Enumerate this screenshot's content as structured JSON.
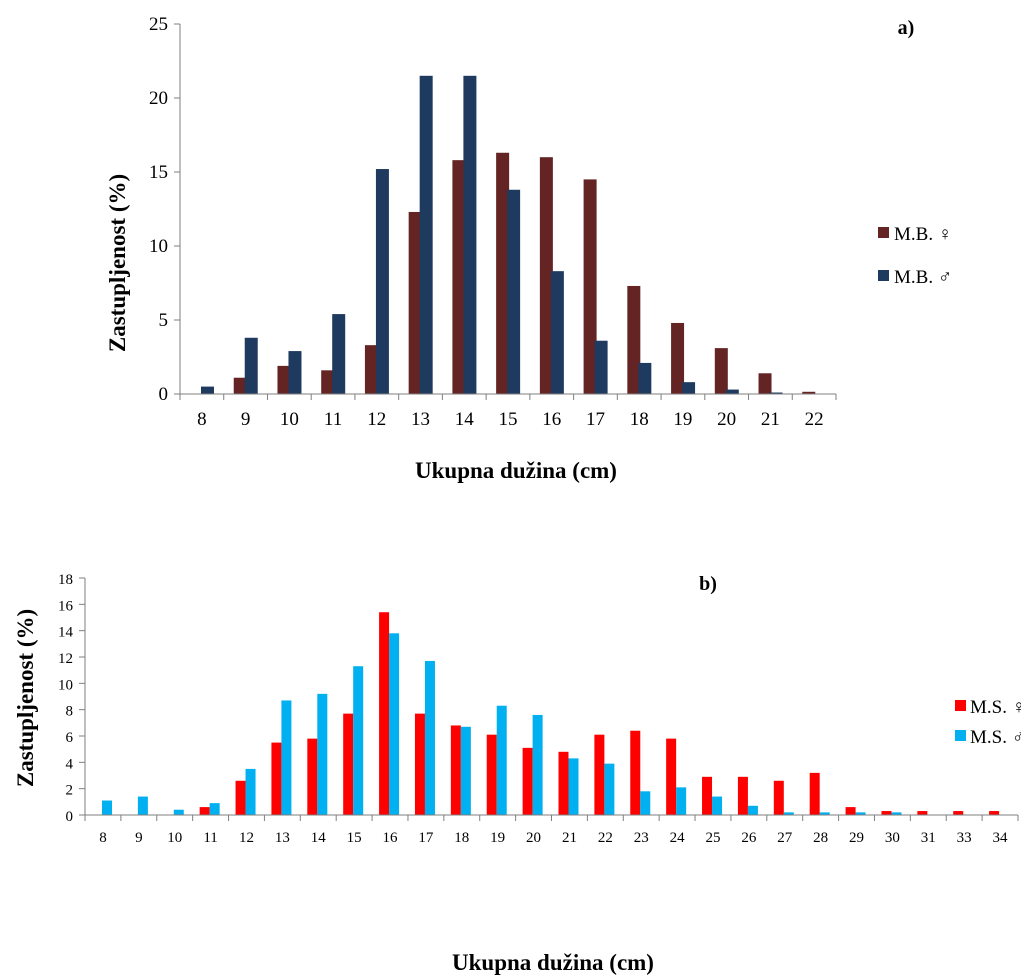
{
  "chart_data": [
    {
      "type": "bar",
      "panel_label": "a)",
      "xlabel": "Ukupna dužina (cm)",
      "ylabel": "Zastupljenost (%)",
      "ylim": [
        0,
        25
      ],
      "yticks": [
        "0",
        "5",
        "10",
        "15",
        "20",
        "25"
      ],
      "categories": [
        "8",
        "9",
        "10",
        "11",
        "12",
        "13",
        "14",
        "15",
        "16",
        "17",
        "18",
        "19",
        "20",
        "21",
        "22"
      ],
      "series": [
        {
          "name": "M.B. ♀",
          "color": "#632423",
          "values": [
            0,
            1.1,
            1.9,
            1.6,
            3.3,
            12.3,
            15.8,
            16.3,
            16.0,
            14.5,
            7.3,
            4.8,
            3.1,
            1.4,
            0.15
          ]
        },
        {
          "name": "M.B. ♂",
          "color": "#1f3a5f",
          "values": [
            0.5,
            3.8,
            2.9,
            5.4,
            15.2,
            21.5,
            21.5,
            13.8,
            8.3,
            3.6,
            2.1,
            0.8,
            0.3,
            0.1,
            0
          ]
        }
      ],
      "legend": "right",
      "grid": false
    },
    {
      "type": "bar",
      "panel_label": "b)",
      "xlabel": "Ukupna dužina (cm)",
      "ylabel": "Zastupljenost (%)",
      "ylim": [
        0,
        18
      ],
      "yticks": [
        "0",
        "2",
        "4",
        "6",
        "8",
        "10",
        "12",
        "14",
        "16",
        "18"
      ],
      "categories": [
        "8",
        "9",
        "10",
        "11",
        "12",
        "13",
        "14",
        "15",
        "16",
        "17",
        "18",
        "19",
        "20",
        "21",
        "22",
        "23",
        "24",
        "25",
        "26",
        "27",
        "28",
        "29",
        "30",
        "31",
        "33",
        "34"
      ],
      "series": [
        {
          "name": "M.S. ♀",
          "color": "#ff0000",
          "values": [
            0,
            0,
            0,
            0.6,
            2.6,
            5.5,
            5.8,
            7.7,
            15.4,
            7.7,
            6.8,
            6.1,
            5.1,
            4.8,
            6.1,
            6.4,
            5.8,
            2.9,
            2.9,
            2.6,
            3.2,
            0.6,
            0.3,
            0.3,
            0.3,
            0.3
          ]
        },
        {
          "name": "M.S. ♂",
          "color": "#00b0f0",
          "values": [
            1.1,
            1.4,
            0.4,
            0.9,
            3.5,
            8.7,
            9.2,
            11.3,
            13.8,
            11.7,
            6.7,
            8.3,
            7.6,
            4.3,
            3.9,
            1.8,
            2.1,
            1.4,
            0.7,
            0.2,
            0.2,
            0.2,
            0.2,
            0,
            0,
            0
          ]
        }
      ],
      "legend": "right",
      "grid": false
    }
  ]
}
